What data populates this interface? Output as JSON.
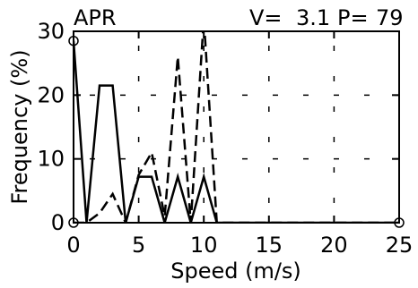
{
  "chart_data": {
    "type": "line",
    "title": "APR",
    "annotations": [
      {
        "label": "V=",
        "value": "3.1"
      },
      {
        "label": "P=",
        "value": "79"
      }
    ],
    "xlabel": "Speed (m/s)",
    "ylabel": "Frequency (%)",
    "xlim": [
      0,
      25
    ],
    "ylim": [
      0,
      30
    ],
    "xticks": [
      0,
      5,
      10,
      15,
      20,
      25
    ],
    "yticks": [
      0,
      10,
      20,
      30
    ],
    "grid": true,
    "series": [
      {
        "style": "solid",
        "x": [
          0,
          1,
          2,
          3,
          4,
          5,
          6,
          7,
          8,
          9,
          10,
          11,
          25
        ],
        "y": [
          28.5,
          0,
          21.5,
          21.5,
          0,
          7.2,
          7.2,
          0,
          7.2,
          0,
          7.2,
          0,
          0
        ]
      },
      {
        "style": "dashed",
        "x": [
          0,
          1,
          2,
          3,
          4,
          5,
          6,
          7,
          8,
          9,
          10,
          11,
          25
        ],
        "y": [
          0,
          0,
          1.5,
          4.5,
          0,
          7.5,
          11,
          1,
          26,
          0,
          32,
          0,
          0
        ]
      }
    ],
    "markers": [
      {
        "shape": "circle",
        "x": 0,
        "y": 28.5
      },
      {
        "shape": "circle",
        "x": 0,
        "y": 0
      },
      {
        "shape": "circle",
        "x": 25,
        "y": 0
      }
    ]
  }
}
